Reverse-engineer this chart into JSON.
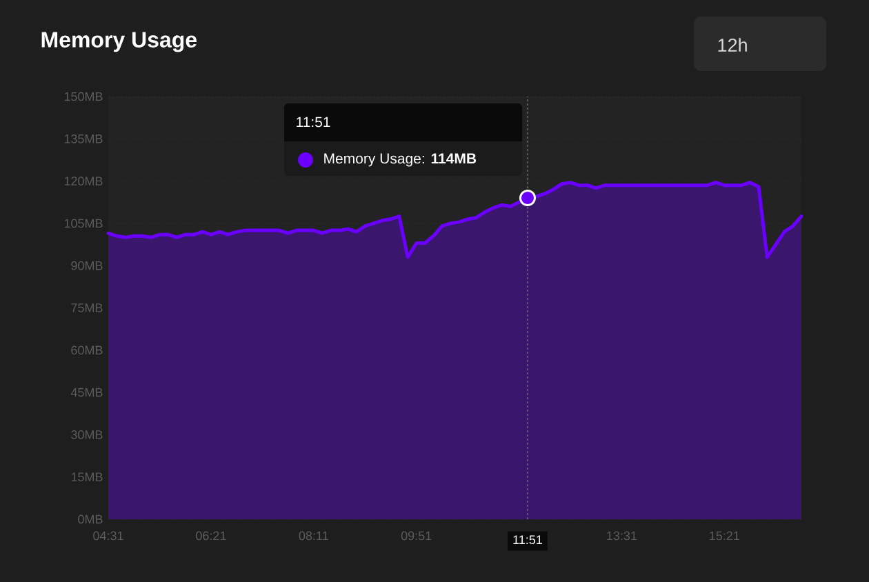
{
  "chart_data": {
    "type": "area",
    "title": "Memory Usage",
    "categories": [
      "04:31",
      null,
      null,
      null,
      null,
      null,
      null,
      null,
      null,
      null,
      null,
      null,
      "06:21",
      null,
      null,
      null,
      null,
      null,
      null,
      null,
      null,
      null,
      null,
      null,
      "08:11",
      null,
      null,
      null,
      null,
      null,
      null,
      null,
      null,
      null,
      null,
      null,
      "09:51",
      null,
      null,
      null,
      null,
      null,
      null,
      null,
      null,
      null,
      null,
      null,
      null,
      "11:51",
      null,
      null,
      null,
      null,
      null,
      null,
      null,
      null,
      null,
      null,
      "13:31",
      null,
      null,
      null,
      null,
      null,
      null,
      null,
      null,
      null,
      null,
      null,
      "15:21",
      null,
      null,
      null,
      null,
      null,
      null,
      null,
      null,
      null
    ],
    "values": [
      101.5,
      100.5,
      100,
      100.5,
      100.5,
      100,
      101,
      101,
      100,
      101,
      101,
      102,
      101,
      102,
      101,
      102,
      102.5,
      102.5,
      102.5,
      102.5,
      102.5,
      101.5,
      102.5,
      102.5,
      102.5,
      101.5,
      102.5,
      102.5,
      103,
      102,
      104,
      105,
      106,
      106.5,
      107.5,
      93,
      98,
      98,
      100.5,
      104,
      105,
      105.5,
      106.5,
      107,
      109,
      110.5,
      111.5,
      111,
      112.5,
      114,
      114.5,
      115.5,
      117,
      119,
      119.5,
      118.5,
      118.5,
      117.5,
      118.5,
      118.5,
      118.5,
      118.5,
      118.5,
      118.5,
      118.5,
      118.5,
      118.5,
      118.5,
      118.5,
      118.5,
      118.5,
      119.5,
      118.5,
      118.5,
      118.5,
      119.5,
      118,
      93,
      97.5,
      102,
      104,
      107.5
    ],
    "color": "#6a00ff",
    "ylim": [
      0,
      150
    ],
    "yticks": [
      {
        "value": 0,
        "label": "0MB"
      },
      {
        "value": 15,
        "label": "15MB"
      },
      {
        "value": 30,
        "label": "30MB"
      },
      {
        "value": 45,
        "label": "45MB"
      },
      {
        "value": 60,
        "label": "60MB"
      },
      {
        "value": 75,
        "label": "75MB"
      },
      {
        "value": 90,
        "label": "90MB"
      },
      {
        "value": 105,
        "label": "105MB"
      },
      {
        "value": 120,
        "label": "120MB"
      },
      {
        "value": 135,
        "label": "135MB"
      },
      {
        "value": 150,
        "label": "150MB"
      }
    ],
    "grid": "y",
    "ref_lines": [
      {
        "axis": "x",
        "value": "11:51",
        "line_style": "dashed"
      }
    ],
    "annotations": [
      "12h",
      "11:51",
      "Memory Usage:  **114MB**"
    ]
  }
}
